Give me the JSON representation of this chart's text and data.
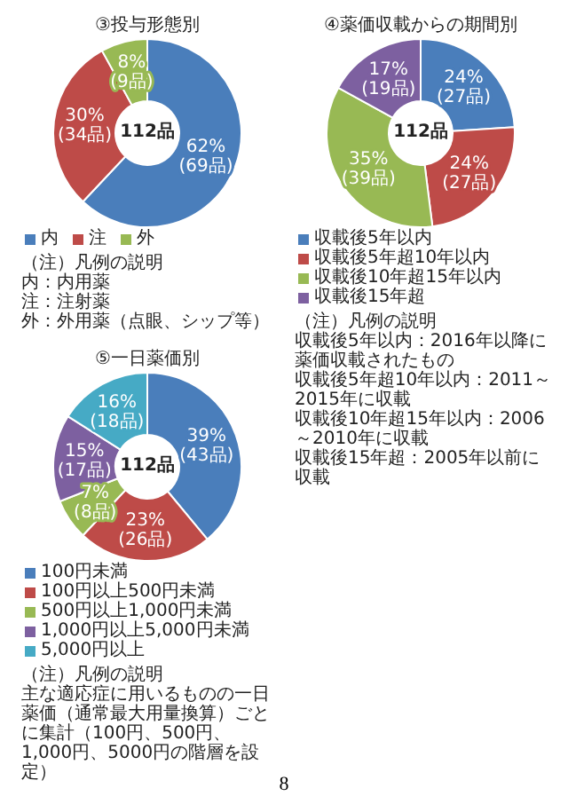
{
  "chart_data": [
    {
      "type": "donut",
      "title": "③投与形態別",
      "categories": [
        "内",
        "注",
        "外"
      ],
      "values": [
        62,
        30,
        8
      ],
      "colors": [
        "#4a7ebb",
        "#be4b48",
        "#98b954"
      ],
      "value_labels": [
        "62%\n(69品)",
        "30%\n(34品)",
        "8%\n(9品)"
      ],
      "legend": "bottom",
      "annotations": [
        "112品",
        "（注）凡例の説明",
        "内：内用薬",
        "注：注射薬",
        "外：外用薬（点眼、シップ等）"
      ]
    },
    {
      "type": "donut",
      "title": "④薬価収載からの期間別",
      "categories": [
        "収載後5年以内",
        "収載後5年超10年以内",
        "収載後10年超15年以内",
        "収載後15年超"
      ],
      "values": [
        24,
        24,
        35,
        17
      ],
      "colors": [
        "#4a7ebb",
        "#be4b48",
        "#98b954",
        "#7d60a0"
      ],
      "value_labels": [
        "24%\n(27品)",
        "24%\n(27品)",
        "35%\n(39品)",
        "17%\n(19品)"
      ],
      "legend": "bottom",
      "annotations": [
        "112品",
        "（注）凡例の説明",
        "収載後5年以内：2016年以降に薬価収載されたもの",
        "収載後5年超10年以内：2011～2015年に収載",
        "収載後10年超15年以内：2006～2010年に収載",
        "収載後15年超：2005年以前に収載"
      ]
    },
    {
      "type": "donut",
      "title": "⑤一日薬価別",
      "categories": [
        "100円未満",
        "100円以上500円未満",
        "500円以上1,000円未満",
        "1,000円以上5,000円未満",
        "5,000円以上"
      ],
      "values": [
        39,
        23,
        7,
        15,
        16
      ],
      "colors": [
        "#4a7ebb",
        "#be4b48",
        "#98b954",
        "#7d60a0",
        "#46aac5"
      ],
      "value_labels": [
        "39%\n(43品)",
        "23%\n(26品)",
        "7%\n(8品)",
        "15%\n(17品)",
        "16%\n(18品)"
      ],
      "legend": "bottom",
      "annotations": [
        "112品",
        "（注）凡例の説明",
        "主な適応症に用いるものの一日薬価（通常最大用量換算）ごとに集計（100円、500円、1,000円、5000円の階層を設定）"
      ]
    },
    {
      "type": "other",
      "annotations": [
        "8"
      ]
    }
  ]
}
